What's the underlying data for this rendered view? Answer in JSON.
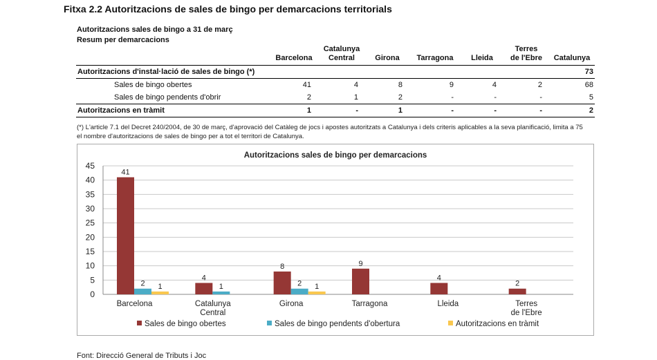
{
  "figure_title": "Fitxa 2.2 Autoritzacions de sales de bingo per demarcacions territorials",
  "table": {
    "title_line1": "Autoritzacions sales de bingo a 31 de març",
    "title_line2": "Resum per demarcacions",
    "columns": [
      {
        "line1": "Barcelona",
        "line2": ""
      },
      {
        "line1": "Catalunya",
        "line2": "Central"
      },
      {
        "line1": "Girona",
        "line2": ""
      },
      {
        "line1": "Tarragona",
        "line2": ""
      },
      {
        "line1": "Lleida",
        "line2": ""
      },
      {
        "line1": "Terres",
        "line2": "de l'Ebre"
      },
      {
        "line1": "Catalunya",
        "line2": ""
      }
    ],
    "rows": [
      {
        "label": "Autoritzacions d'instal·lació de sales de bingo (*)",
        "values": [
          "",
          "",
          "",
          "",
          "",
          "",
          "73"
        ]
      },
      {
        "label": "Sales de bingo obertes",
        "values": [
          "41",
          "4",
          "8",
          "9",
          "4",
          "2",
          "68"
        ]
      },
      {
        "label": "Sales de bingo pendents d'obrir",
        "values": [
          "2",
          "1",
          "2",
          "-",
          "-",
          "-",
          "5"
        ]
      },
      {
        "label": "Autoritzacions en tràmit",
        "values": [
          "1",
          "-",
          "1",
          "-",
          "-",
          "-",
          "2"
        ]
      }
    ],
    "note": "(*) L'article 7.1 del Decret 240/2004, de 30 de març, d'aprovació del Catàleg de jocs i apostes autoritzats a Catalunya i dels criteris aplicables a la seva planificació, limita a 75 el nombre d'autoritzacions de sales de bingo per a tot el territori de Catalunya."
  },
  "source": "Font: Direcció General de Tributs i Joc",
  "chart_data": {
    "type": "bar",
    "title": "Autoritzacions sales de bingo per demarcacions",
    "categories": [
      [
        "Barcelona"
      ],
      [
        "Catalunya",
        "Central"
      ],
      [
        "Girona"
      ],
      [
        "Tarragona"
      ],
      [
        "Lleida"
      ],
      [
        "Terres",
        "de l'Ebre"
      ]
    ],
    "series": [
      {
        "name": "Sales de bingo obertes",
        "values": [
          41,
          4,
          8,
          9,
          4,
          2
        ],
        "color": "#953735"
      },
      {
        "name": "Sales de bingo pendents d'obertura",
        "values": [
          2,
          1,
          2,
          null,
          null,
          null
        ],
        "color": "#4BACC6"
      },
      {
        "name": "Autoritzacions en tràmit",
        "values": [
          1,
          null,
          1,
          null,
          null,
          null
        ],
        "color": "#F9C74F"
      }
    ],
    "ylim": [
      0,
      45
    ],
    "yticks": [
      0,
      5,
      10,
      15,
      20,
      25,
      30,
      35,
      40,
      45
    ],
    "grid": true,
    "legend": "bottom",
    "xlabel": "",
    "ylabel": ""
  }
}
